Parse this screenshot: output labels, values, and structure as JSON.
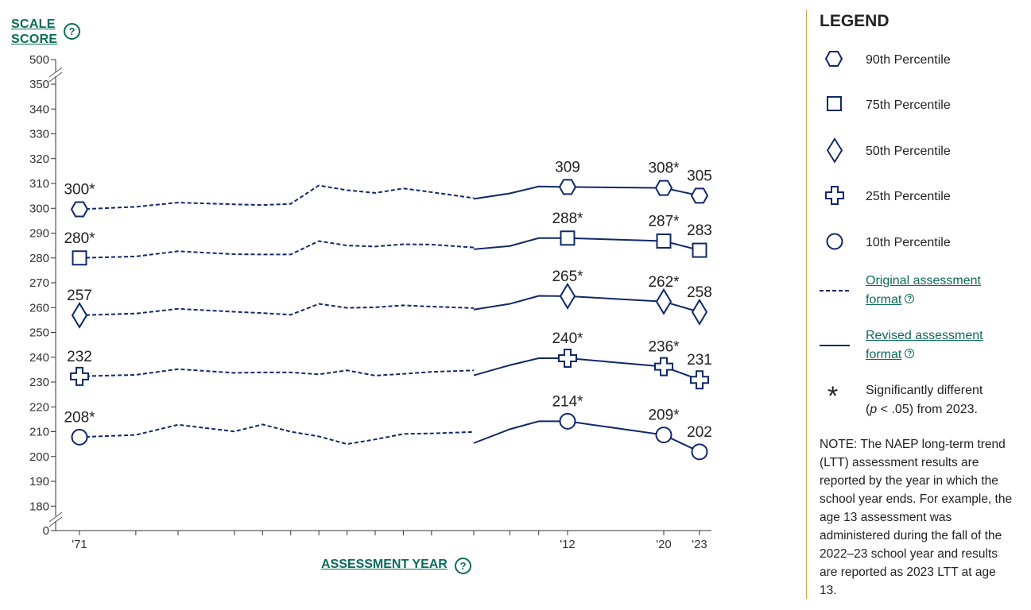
{
  "axis": {
    "y_label_line1": "SCALE",
    "y_label_line2": "SCORE",
    "x_label": "ASSESSMENT YEAR",
    "help_glyph": "?"
  },
  "chart_data": {
    "type": "line",
    "y_ticks": [
      "500",
      "350",
      "340",
      "330",
      "320",
      "310",
      "300",
      "290",
      "280",
      "270",
      "260",
      "250",
      "240",
      "230",
      "220",
      "210",
      "200",
      "190",
      "180",
      "0"
    ],
    "x_tick_labels": [
      {
        "year": 1971,
        "label": "'71"
      },
      {
        "year": 2012,
        "label": "'12"
      },
      {
        "year": 2020,
        "label": "'20"
      },
      {
        "year": 2023,
        "label": "'23"
      }
    ],
    "x_tick_years": [
      1971,
      1975,
      1978,
      1982,
      1984,
      1986,
      1988,
      1990,
      1992,
      1994,
      1996,
      1999,
      2004,
      2008,
      2012,
      2020,
      2023
    ],
    "ylim": [
      180,
      350
    ],
    "axis_break": true,
    "series": [
      {
        "name": "90th Percentile",
        "marker": "hexagon-icon",
        "original": [
          [
            1971,
            299.6
          ],
          [
            1975,
            300.6
          ],
          [
            1978,
            302.3
          ],
          [
            1982,
            301.6
          ],
          [
            1984,
            301.3
          ],
          [
            1986,
            301.8
          ],
          [
            1988,
            309.2
          ],
          [
            1990,
            307.3
          ],
          [
            1992,
            306.2
          ],
          [
            1994,
            308.0
          ],
          [
            1996,
            306.5
          ],
          [
            1999,
            304.1
          ]
        ],
        "revised": [
          [
            1999,
            303.8
          ],
          [
            2004,
            306.0
          ],
          [
            2008,
            308.8
          ],
          [
            2012,
            308.6
          ],
          [
            2020,
            308.2
          ],
          [
            2023,
            305.1
          ]
        ],
        "labels": [
          {
            "year": 1971,
            "value": 299.6,
            "text": "300*"
          },
          {
            "year": 2012,
            "value": 308.6,
            "text": "309"
          },
          {
            "year": 2020,
            "value": 308.2,
            "text": "308*"
          },
          {
            "year": 2023,
            "value": 305.1,
            "text": "305"
          }
        ]
      },
      {
        "name": "75th Percentile",
        "marker": "square-icon",
        "original": [
          [
            1971,
            280.0
          ],
          [
            1975,
            280.6
          ],
          [
            1978,
            282.7
          ],
          [
            1982,
            281.5
          ],
          [
            1984,
            281.4
          ],
          [
            1986,
            281.4
          ],
          [
            1988,
            286.8
          ],
          [
            1990,
            285.0
          ],
          [
            1992,
            284.6
          ],
          [
            1994,
            285.5
          ],
          [
            1996,
            285.4
          ],
          [
            1999,
            284.2
          ]
        ],
        "revised": [
          [
            1999,
            283.5
          ],
          [
            2004,
            284.8
          ],
          [
            2008,
            288.0
          ],
          [
            2012,
            288.0
          ],
          [
            2020,
            286.8
          ],
          [
            2023,
            283.1
          ]
        ],
        "labels": [
          {
            "year": 1971,
            "value": 280.0,
            "text": "280*"
          },
          {
            "year": 2012,
            "value": 288.0,
            "text": "288*"
          },
          {
            "year": 2020,
            "value": 286.8,
            "text": "287*"
          },
          {
            "year": 2023,
            "value": 283.1,
            "text": "283"
          }
        ]
      },
      {
        "name": "50th Percentile",
        "marker": "diamond-icon",
        "original": [
          [
            1971,
            256.9
          ],
          [
            1975,
            257.6
          ],
          [
            1978,
            259.5
          ],
          [
            1982,
            258.3
          ],
          [
            1984,
            257.8
          ],
          [
            1986,
            257.1
          ],
          [
            1988,
            261.5
          ],
          [
            1990,
            259.9
          ],
          [
            1992,
            260.1
          ],
          [
            1994,
            260.9
          ],
          [
            1996,
            260.4
          ],
          [
            1999,
            259.8
          ]
        ],
        "revised": [
          [
            1999,
            259.2
          ],
          [
            2004,
            261.5
          ],
          [
            2008,
            264.7
          ],
          [
            2012,
            264.6
          ],
          [
            2020,
            262.4
          ],
          [
            2023,
            258.2
          ]
        ],
        "labels": [
          {
            "year": 1971,
            "value": 256.9,
            "text": "257"
          },
          {
            "year": 2012,
            "value": 264.6,
            "text": "265*"
          },
          {
            "year": 2020,
            "value": 262.4,
            "text": "262*"
          },
          {
            "year": 2023,
            "value": 258.2,
            "text": "258"
          }
        ]
      },
      {
        "name": "25th Percentile",
        "marker": "cross-icon",
        "original": [
          [
            1971,
            232.3
          ],
          [
            1975,
            232.9
          ],
          [
            1978,
            235.2
          ],
          [
            1982,
            233.7
          ],
          [
            1984,
            233.9
          ],
          [
            1986,
            233.9
          ],
          [
            1988,
            233.1
          ],
          [
            1990,
            234.7
          ],
          [
            1992,
            232.6
          ],
          [
            1994,
            233.3
          ],
          [
            1996,
            234.1
          ],
          [
            1999,
            234.7
          ]
        ],
        "revised": [
          [
            1999,
            232.7
          ],
          [
            2004,
            236.8
          ],
          [
            2008,
            239.6
          ],
          [
            2012,
            239.6
          ],
          [
            2020,
            236.2
          ],
          [
            2023,
            230.9
          ]
        ],
        "labels": [
          {
            "year": 1971,
            "value": 232.3,
            "text": "232"
          },
          {
            "year": 2012,
            "value": 239.6,
            "text": "240*"
          },
          {
            "year": 2020,
            "value": 236.2,
            "text": "236*"
          },
          {
            "year": 2023,
            "value": 230.9,
            "text": "231"
          }
        ]
      },
      {
        "name": "10th Percentile",
        "marker": "circle-icon",
        "original": [
          [
            1971,
            207.8
          ],
          [
            1975,
            208.7
          ],
          [
            1978,
            212.8
          ],
          [
            1982,
            210.1
          ],
          [
            1984,
            212.9
          ],
          [
            1986,
            210.0
          ],
          [
            1988,
            208.1
          ],
          [
            1990,
            205.0
          ],
          [
            1992,
            206.9
          ],
          [
            1994,
            209.1
          ],
          [
            1996,
            209.3
          ],
          [
            1999,
            209.9
          ]
        ],
        "revised": [
          [
            1999,
            205.4
          ],
          [
            2004,
            211.0
          ],
          [
            2008,
            214.2
          ],
          [
            2012,
            214.2
          ],
          [
            2020,
            208.7
          ],
          [
            2023,
            201.9
          ]
        ],
        "labels": [
          {
            "year": 1971,
            "value": 207.8,
            "text": "208*"
          },
          {
            "year": 2012,
            "value": 214.2,
            "text": "214*"
          },
          {
            "year": 2020,
            "value": 208.7,
            "text": "209*"
          },
          {
            "year": 2023,
            "value": 201.9,
            "text": "202"
          }
        ]
      }
    ]
  },
  "legend": {
    "title": "LEGEND",
    "items": [
      {
        "label": "90th Percentile"
      },
      {
        "label": "75th Percentile"
      },
      {
        "label": "50th Percentile"
      },
      {
        "label": "25th Percentile"
      },
      {
        "label": "10th Percentile"
      }
    ],
    "original_line1": "Original assessment",
    "original_line2": "format",
    "revised_line1": "Revised assessment",
    "revised_line2": "format",
    "sig_line1": "Significantly different",
    "sig_p": "p",
    "sig_rest": " < .05) from 2023.",
    "sig_open": "(",
    "asterisk": "*",
    "note": "NOTE: The NAEP long-term trend (LTT) assessment results are reported by the year in which the school year ends. For example, the age 13 assessment was administered during the fall of the 2022–23 school year and results are reported as 2023 LTT at age 13."
  },
  "colors": {
    "series": "#0f2867",
    "link": "#0b6b5a",
    "divider": "#c8a64e"
  }
}
